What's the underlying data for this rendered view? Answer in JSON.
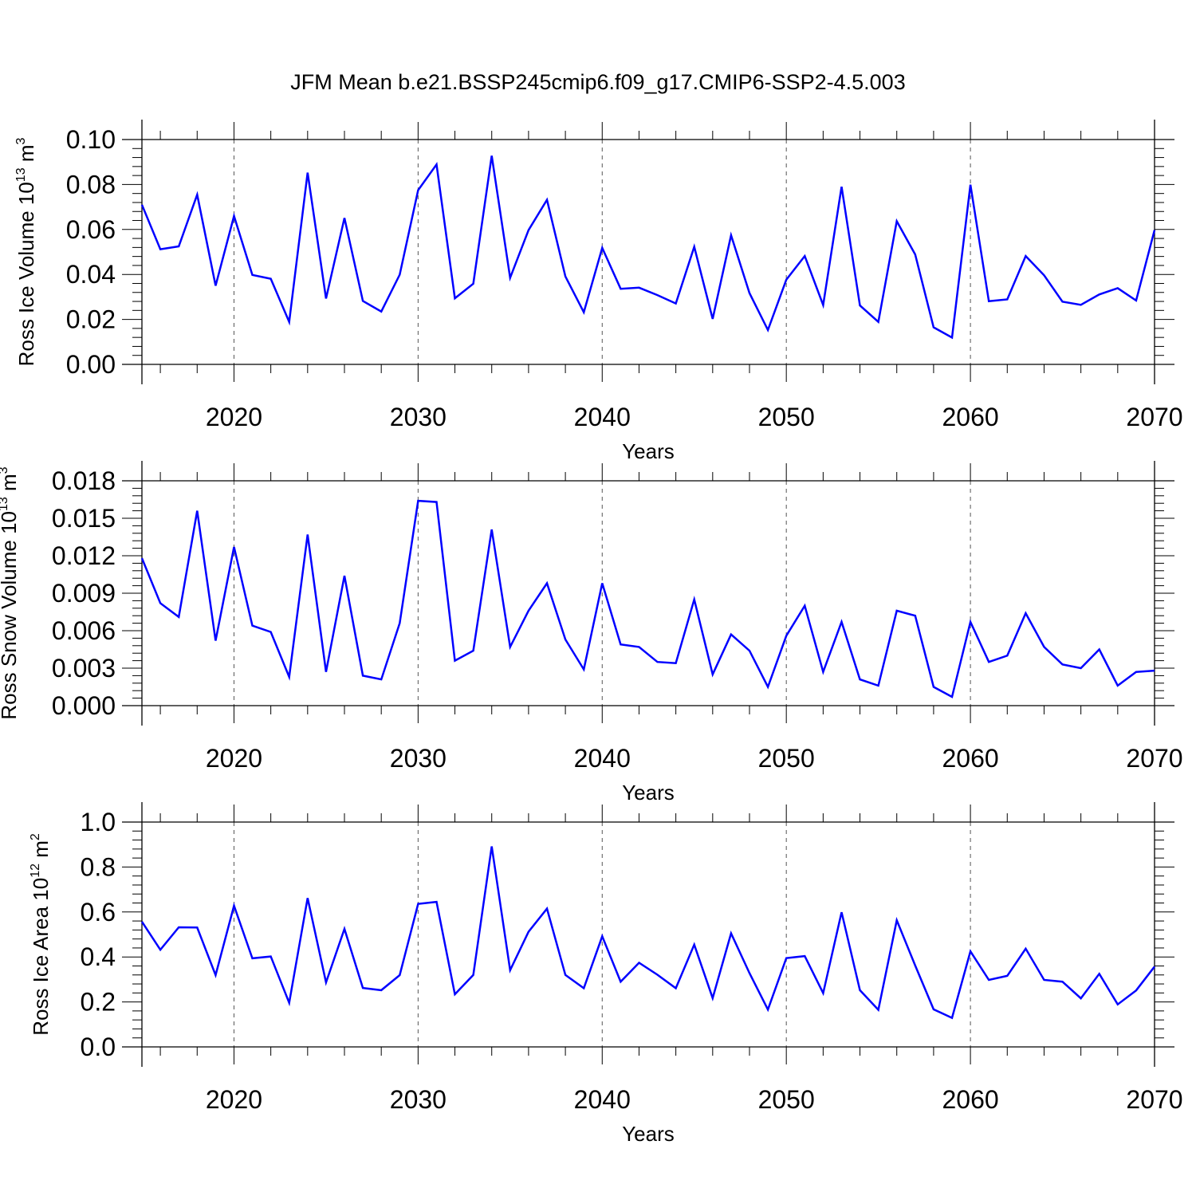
{
  "title": "JFM Mean b.e21.BSSP245cmip6.f09_g17.CMIP6-SSP2-4.5.003",
  "colors": {
    "line": "#0000ff",
    "axis": "#000000",
    "grid": "#555555"
  },
  "chart_data": [
    {
      "type": "line",
      "ylabel": {
        "main": "Ross Ice Volume 10",
        "exp": "13",
        "unit": " m",
        "unit_exp": "3"
      },
      "xlabel": "Years",
      "xlim": [
        2015,
        2070
      ],
      "ylim": [
        0,
        0.1
      ],
      "grid": "vertical dashed at major x ticks",
      "x_ticks": [
        2020,
        2030,
        2040,
        2050,
        2060,
        2070
      ],
      "x_tick_labels": [
        "2020",
        "2030",
        "2040",
        "2050",
        "2060",
        "2070"
      ],
      "y_ticks": [
        0,
        0.02,
        0.04,
        0.06,
        0.08,
        0.1
      ],
      "y_tick_labels": [
        "0.00",
        "0.02",
        "0.04",
        "0.06",
        "0.08",
        "0.10"
      ],
      "x": [
        2015,
        2016,
        2017,
        2018,
        2019,
        2020,
        2021,
        2022,
        2023,
        2024,
        2025,
        2026,
        2027,
        2028,
        2029,
        2030,
        2031,
        2032,
        2033,
        2034,
        2035,
        2036,
        2037,
        2038,
        2039,
        2040,
        2041,
        2042,
        2043,
        2044,
        2045,
        2046,
        2047,
        2048,
        2049,
        2050,
        2051,
        2052,
        2053,
        2054,
        2055,
        2056,
        2057,
        2058,
        2059,
        2060,
        2061,
        2062,
        2063,
        2064,
        2065,
        2066,
        2067,
        2068,
        2069,
        2070
      ],
      "y": [
        0.071,
        0.0512,
        0.0525,
        0.0755,
        0.035,
        0.066,
        0.0398,
        0.0381,
        0.0189,
        0.0853,
        0.0293,
        0.0651,
        0.0282,
        0.0235,
        0.0399,
        0.0775,
        0.0889,
        0.0294,
        0.0359,
        0.0928,
        0.0385,
        0.0597,
        0.0732,
        0.0391,
        0.0232,
        0.0518,
        0.0336,
        0.0341,
        0.0308,
        0.0271,
        0.0523,
        0.0202,
        0.0574,
        0.0317,
        0.0153,
        0.0377,
        0.0482,
        0.0264,
        0.079,
        0.0262,
        0.0189,
        0.0637,
        0.0489,
        0.0165,
        0.0119,
        0.0799,
        0.0281,
        0.0289,
        0.0482,
        0.0396,
        0.0279,
        0.0265,
        0.0311,
        0.0339,
        0.0284,
        0.0597
      ]
    },
    {
      "type": "line",
      "ylabel": {
        "main": "Ross Snow Volume 10",
        "exp": "13",
        "unit": " m",
        "unit_exp": "3"
      },
      "xlabel": "Years",
      "xlim": [
        2015,
        2070
      ],
      "ylim": [
        0,
        0.018
      ],
      "grid": "vertical dashed at major x ticks",
      "x_ticks": [
        2020,
        2030,
        2040,
        2050,
        2060,
        2070
      ],
      "x_tick_labels": [
        "2020",
        "2030",
        "2040",
        "2050",
        "2060",
        "2070"
      ],
      "y_ticks": [
        0,
        0.003,
        0.006,
        0.009,
        0.012,
        0.015,
        0.018
      ],
      "y_tick_labels": [
        "0.000",
        "0.003",
        "0.006",
        "0.009",
        "0.012",
        "0.015",
        "0.018"
      ],
      "x": [
        2015,
        2016,
        2017,
        2018,
        2019,
        2020,
        2021,
        2022,
        2023,
        2024,
        2025,
        2026,
        2027,
        2028,
        2029,
        2030,
        2031,
        2032,
        2033,
        2034,
        2035,
        2036,
        2037,
        2038,
        2039,
        2040,
        2041,
        2042,
        2043,
        2044,
        2045,
        2046,
        2047,
        2048,
        2049,
        2050,
        2051,
        2052,
        2053,
        2054,
        2055,
        2056,
        2057,
        2058,
        2059,
        2060,
        2061,
        2062,
        2063,
        2064,
        2065,
        2066,
        2067,
        2068,
        2069,
        2070
      ],
      "y": [
        0.0118,
        0.0082,
        0.0071,
        0.0156,
        0.0052,
        0.0127,
        0.0064,
        0.0059,
        0.0023,
        0.0137,
        0.0027,
        0.0104,
        0.0024,
        0.0021,
        0.0066,
        0.0164,
        0.0163,
        0.0036,
        0.0044,
        0.0141,
        0.0047,
        0.0076,
        0.0098,
        0.0053,
        0.0029,
        0.0098,
        0.0049,
        0.0047,
        0.0035,
        0.0034,
        0.0085,
        0.0025,
        0.0057,
        0.0044,
        0.0015,
        0.0056,
        0.008,
        0.0027,
        0.0067,
        0.0021,
        0.0016,
        0.0076,
        0.0072,
        0.0015,
        0.0007,
        0.0067,
        0.0035,
        0.004,
        0.0074,
        0.0047,
        0.0033,
        0.003,
        0.0045,
        0.0016,
        0.0027,
        0.0028
      ]
    },
    {
      "type": "line",
      "ylabel": {
        "main": "Ross Ice Area 10",
        "exp": "12",
        "unit": " m",
        "unit_exp": "2"
      },
      "xlabel": "Years",
      "xlim": [
        2015,
        2070
      ],
      "ylim": [
        0,
        1.0
      ],
      "grid": "vertical dashed at major x ticks",
      "x_ticks": [
        2020,
        2030,
        2040,
        2050,
        2060,
        2070
      ],
      "x_tick_labels": [
        "2020",
        "2030",
        "2040",
        "2050",
        "2060",
        "2070"
      ],
      "y_ticks": [
        0,
        0.2,
        0.4,
        0.6,
        0.8,
        1.0
      ],
      "y_tick_labels": [
        "0.0",
        "0.2",
        "0.4",
        "0.6",
        "0.8",
        "1.0"
      ],
      "x": [
        2015,
        2016,
        2017,
        2018,
        2019,
        2020,
        2021,
        2022,
        2023,
        2024,
        2025,
        2026,
        2027,
        2028,
        2029,
        2030,
        2031,
        2032,
        2033,
        2034,
        2035,
        2036,
        2037,
        2038,
        2039,
        2040,
        2041,
        2042,
        2043,
        2044,
        2045,
        2046,
        2047,
        2048,
        2049,
        2050,
        2051,
        2052,
        2053,
        2054,
        2055,
        2056,
        2057,
        2058,
        2059,
        2060,
        2061,
        2062,
        2063,
        2064,
        2065,
        2066,
        2067,
        2068,
        2069,
        2070
      ],
      "y": [
        0.557,
        0.432,
        0.532,
        0.531,
        0.319,
        0.628,
        0.394,
        0.402,
        0.196,
        0.662,
        0.287,
        0.525,
        0.262,
        0.252,
        0.319,
        0.636,
        0.645,
        0.234,
        0.32,
        0.892,
        0.341,
        0.512,
        0.615,
        0.32,
        0.261,
        0.492,
        0.29,
        0.374,
        0.321,
        0.261,
        0.455,
        0.217,
        0.505,
        0.328,
        0.166,
        0.395,
        0.404,
        0.239,
        0.599,
        0.252,
        0.165,
        0.563,
        0.362,
        0.167,
        0.129,
        0.425,
        0.298,
        0.316,
        0.437,
        0.298,
        0.29,
        0.216,
        0.325,
        0.189,
        0.251,
        0.357
      ]
    }
  ]
}
